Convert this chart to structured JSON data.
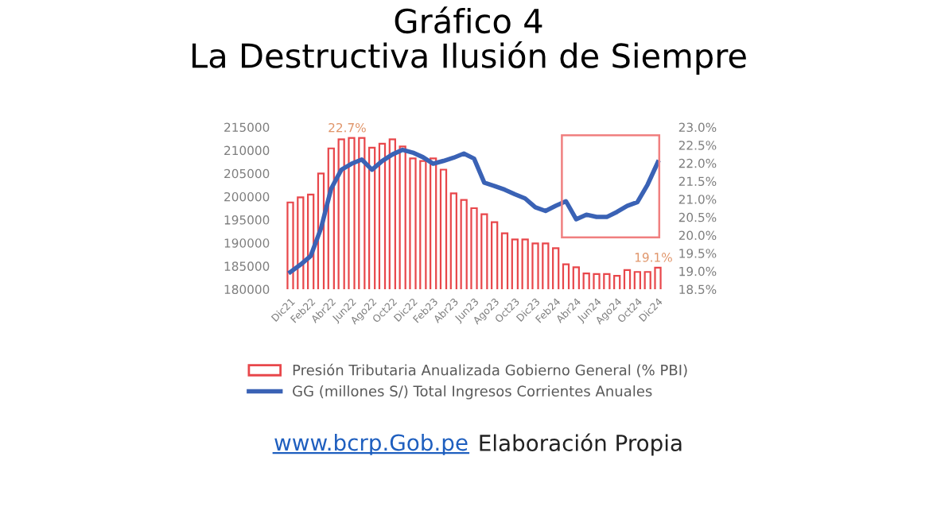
{
  "chart_data": {
    "type": "bar",
    "title": "Gráfico 4\nLa Destructiva Ilusión de Siempre",
    "categories": [
      "Dic21",
      null,
      "Feb22",
      null,
      "Abr22",
      null,
      "Jun22",
      null,
      "Ago22",
      null,
      "Oct22",
      null,
      "Dic22",
      null,
      "Feb23",
      null,
      "Abr23",
      null,
      "Jun23",
      null,
      "Ago23",
      null,
      "Oct23",
      null,
      "Dic23",
      null,
      "Feb24",
      null,
      "Abr24",
      null,
      "Jun24",
      null,
      "Ago24",
      null,
      "Oct24",
      null,
      "Dic24"
    ],
    "series": [
      {
        "name": "Presión Tributaria Anualizada Gobierno General (% PBI)",
        "axis": "y2",
        "color": "#e8474b",
        "values": [
          20.91,
          21.05,
          21.13,
          21.71,
          22.41,
          22.66,
          22.7,
          22.7,
          22.43,
          22.54,
          22.66,
          22.46,
          22.13,
          22.06,
          22.13,
          21.82,
          21.16,
          20.98,
          20.75,
          20.58,
          20.36,
          20.05,
          19.88,
          19.88,
          19.77,
          19.77,
          19.64,
          19.19,
          19.11,
          18.94,
          18.92,
          18.92,
          18.87,
          19.03,
          18.98,
          18.98,
          19.1
        ],
        "value_labels": [
          null,
          null,
          null,
          null,
          null,
          null,
          "22.7%",
          null,
          null,
          null,
          null,
          null,
          null,
          null,
          null,
          null,
          null,
          null,
          null,
          null,
          null,
          null,
          null,
          null,
          null,
          null,
          null,
          null,
          null,
          null,
          null,
          null,
          null,
          null,
          null,
          null,
          "19.1%"
        ]
      },
      {
        "name": "GG (millones S/) Total Ingresos Corrientes Anuales",
        "type": "line",
        "axis": "y",
        "color": "#3a62b5",
        "values": [
          183700,
          185300,
          187200,
          193100,
          201700,
          205800,
          207100,
          208000,
          205800,
          207700,
          209100,
          210100,
          209500,
          208500,
          207100,
          207700,
          208400,
          209300,
          208200,
          203000,
          202300,
          201500,
          200500,
          199600,
          197700,
          196900,
          198000,
          199000,
          195100,
          196100,
          195600,
          195600,
          196700,
          198000,
          198800,
          202600,
          207400
        ]
      }
    ],
    "ylim": [
      180000,
      215000
    ],
    "yticks": [
      180000,
      185000,
      190000,
      195000,
      200000,
      205000,
      210000,
      215000
    ],
    "y2lim": [
      18.5,
      23.0
    ],
    "y2ticks": [
      {
        "value": 18.5,
        "label": "18.5%"
      },
      {
        "value": 19.0,
        "label": "19.0%"
      },
      {
        "value": 19.5,
        "label": "19.5%"
      },
      {
        "value": 20.0,
        "label": "20.0%"
      },
      {
        "value": 20.5,
        "label": "20.5%"
      },
      {
        "value": 21.0,
        "label": "21.0%"
      },
      {
        "value": 21.5,
        "label": "21.5%"
      },
      {
        "value": 22.0,
        "label": "22.0%"
      },
      {
        "value": 22.5,
        "label": "22.5%"
      },
      {
        "value": 23.0,
        "label": "23.0%"
      }
    ],
    "grid": false,
    "legend": "bottom",
    "annotations": [
      "www.bcrp.Gob.pe",
      "Elaboración Propia"
    ]
  }
}
